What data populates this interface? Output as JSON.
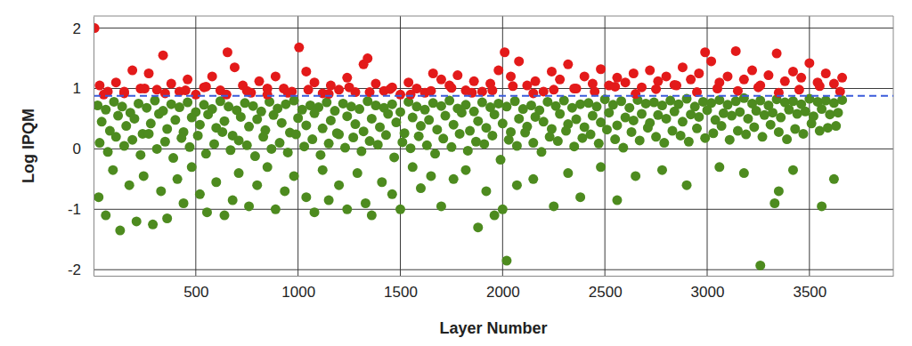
{
  "chart_data": {
    "type": "scatter",
    "x_label": "Layer Number",
    "y_label": "Log IPQM",
    "xlim": [
      0,
      3910
    ],
    "ylim": [
      -2.1,
      2.2
    ],
    "xticks": [
      500,
      1000,
      1500,
      2000,
      2500,
      3000,
      3500
    ],
    "yticks": [
      -2,
      -1,
      0,
      1,
      2
    ],
    "grid": true,
    "marker": "circle",
    "reference_line": {
      "value": 0.88,
      "color": "#3b5bdb",
      "line_style": "dashed"
    },
    "series": [
      {
        "color": "#4d8b1f",
        "x": [
          20,
          60,
          100,
          140,
          180,
          220,
          260,
          300,
          340,
          380,
          420,
          460,
          500,
          540,
          580,
          620,
          660,
          700,
          740,
          780,
          820,
          860,
          900,
          940,
          980,
          1020,
          1060,
          1100,
          1140,
          1180,
          1220,
          1260,
          1300,
          1340,
          1380,
          1420,
          1460,
          1500,
          1540,
          1580,
          1620,
          1660,
          1700,
          1740,
          1780,
          1820,
          1860,
          1900,
          1940,
          1980,
          2020,
          2060,
          2100,
          2140,
          2180,
          2220,
          2260,
          2300,
          2340,
          2380,
          2420,
          2460,
          2500,
          2540,
          2580,
          2620,
          2660,
          2700,
          2740,
          2780,
          2820,
          2860,
          2900,
          2940,
          2980,
          3020,
          3060,
          3100,
          3140,
          3180,
          3220,
          3260,
          3300,
          3340,
          3380,
          3420,
          3460,
          3500,
          3540,
          3580,
          3620,
          3660
        ],
        "values": [
          0.72,
          0.65,
          0.78,
          0.7,
          0.6,
          0.75,
          0.68,
          0.8,
          0.63,
          0.74,
          0.69,
          0.77,
          0.61,
          0.73,
          0.66,
          0.79,
          0.7,
          0.64,
          0.76,
          0.71,
          0.62,
          0.78,
          0.67,
          0.74,
          0.8,
          0.65,
          0.72,
          0.69,
          0.77,
          0.63,
          0.75,
          0.7,
          0.66,
          0.79,
          0.72,
          0.68,
          0.74,
          0.61,
          0.78,
          0.7,
          0.65,
          0.76,
          0.71,
          0.8,
          0.67,
          0.73,
          0.62,
          0.77,
          0.69,
          0.75,
          0.7,
          0.79,
          0.66,
          0.72,
          0.64,
          0.78,
          0.71,
          0.8,
          0.68,
          0.74,
          0.76,
          0.7,
          0.82,
          0.73,
          0.79,
          0.68,
          0.81,
          0.75,
          0.77,
          0.72,
          0.8,
          0.74,
          0.83,
          0.7,
          0.78,
          0.76,
          0.81,
          0.73,
          0.79,
          0.84,
          0.75,
          0.8,
          0.72,
          0.82,
          0.77,
          0.79,
          0.74,
          0.83,
          0.78,
          0.8,
          0.76,
          0.81
        ]
      },
      {
        "color": "#4d8b1f",
        "x": [
          40,
          80,
          120,
          160,
          200,
          240,
          280,
          320,
          360,
          400,
          440,
          480,
          520,
          560,
          600,
          640,
          680,
          720,
          760,
          800,
          840,
          880,
          920,
          960,
          1000,
          1040,
          1080,
          1120,
          1160,
          1200,
          1240,
          1280,
          1320,
          1360,
          1400,
          1440,
          1480,
          1520,
          1560,
          1600,
          1640,
          1680,
          1720,
          1760,
          1800,
          1840,
          1880,
          1920,
          1960,
          2000,
          2040,
          2080,
          2120,
          2160,
          2200,
          2240,
          2280,
          2320,
          2360,
          2400,
          2440,
          2480,
          2520,
          2560,
          2600,
          2640,
          2680,
          2720,
          2760,
          2800,
          2840,
          2880,
          2920,
          2960,
          3000,
          3040,
          3080,
          3120,
          3160,
          3200,
          3240,
          3280,
          3320,
          3360,
          3400,
          3440,
          3480,
          3520,
          3560,
          3600,
          3640
        ],
        "values": [
          0.45,
          0.3,
          0.55,
          0.38,
          0.5,
          0.25,
          0.42,
          0.58,
          0.33,
          0.48,
          0.28,
          0.52,
          0.4,
          0.57,
          0.35,
          0.46,
          0.22,
          0.53,
          0.37,
          0.49,
          0.31,
          0.56,
          0.43,
          0.27,
          0.51,
          0.39,
          0.59,
          0.34,
          0.47,
          0.24,
          0.54,
          0.41,
          0.29,
          0.5,
          0.36,
          0.58,
          0.44,
          0.26,
          0.52,
          0.38,
          0.48,
          0.32,
          0.55,
          0.4,
          0.6,
          0.3,
          0.46,
          0.35,
          0.57,
          0.42,
          0.28,
          0.5,
          0.37,
          0.53,
          0.45,
          0.33,
          0.58,
          0.41,
          0.49,
          0.36,
          0.55,
          0.44,
          0.6,
          0.39,
          0.52,
          0.47,
          0.58,
          0.43,
          0.56,
          0.5,
          0.62,
          0.45,
          0.57,
          0.53,
          0.64,
          0.48,
          0.59,
          0.55,
          0.61,
          0.5,
          0.63,
          0.56,
          0.6,
          0.52,
          0.65,
          0.58,
          0.62,
          0.54,
          0.66,
          0.57,
          0.6
        ]
      },
      {
        "color": "#4d8b1f",
        "x": [
          30,
          70,
          110,
          150,
          190,
          230,
          270,
          310,
          350,
          390,
          430,
          470,
          510,
          550,
          590,
          630,
          670,
          710,
          750,
          790,
          830,
          870,
          910,
          950,
          990,
          1030,
          1070,
          1110,
          1150,
          1190,
          1230,
          1270,
          1310,
          1350,
          1390,
          1430,
          1470,
          1510,
          1550,
          1590,
          1630,
          1670,
          1710,
          1750,
          1790,
          1830,
          1870,
          1910,
          1950,
          1990,
          2030,
          2070,
          2110,
          2150,
          2190,
          2230,
          2270,
          2310,
          2350,
          2390,
          2430,
          2470,
          2510,
          2550,
          2590,
          2630,
          2670,
          2710,
          2750,
          2790,
          2830,
          2870,
          2910,
          2950,
          2990,
          3030,
          3070,
          3110,
          3150,
          3190,
          3230,
          3270,
          3310,
          3350,
          3390,
          3430,
          3470,
          3510,
          3550,
          3590,
          3630
        ],
        "values": [
          0.1,
          -0.05,
          0.2,
          0.05,
          0.15,
          -0.1,
          0.25,
          0.0,
          0.12,
          -0.15,
          0.18,
          0.03,
          0.22,
          -0.08,
          0.08,
          0.28,
          -0.02,
          0.14,
          0.06,
          -0.12,
          0.2,
          0.0,
          0.1,
          -0.06,
          0.24,
          0.04,
          0.16,
          -0.1,
          0.09,
          0.26,
          0.02,
          0.19,
          -0.04,
          0.13,
          0.07,
          0.23,
          -0.14,
          0.11,
          0.01,
          0.21,
          0.06,
          -0.08,
          0.17,
          0.03,
          0.25,
          -0.03,
          0.12,
          0.08,
          0.22,
          -0.18,
          0.15,
          0.05,
          0.27,
          0.1,
          -0.05,
          0.2,
          0.13,
          0.3,
          0.04,
          0.18,
          0.24,
          0.09,
          0.32,
          0.16,
          0.02,
          0.28,
          0.14,
          0.35,
          0.2,
          0.1,
          0.3,
          0.22,
          0.12,
          0.34,
          0.18,
          0.26,
          0.38,
          0.15,
          0.3,
          0.24,
          0.36,
          0.2,
          0.4,
          0.28,
          0.16,
          0.33,
          0.25,
          0.42,
          0.3,
          0.35,
          0.38
        ]
      },
      {
        "color": "#4d8b1f",
        "x": [
          25,
          60,
          95,
          130,
          175,
          210,
          245,
          290,
          330,
          360,
          410,
          440,
          480,
          520,
          555,
          600,
          640,
          680,
          710,
          760,
          800,
          850,
          890,
          935,
          980,
          1040,
          1080,
          1120,
          1150,
          1200,
          1240,
          1290,
          1330,
          1360,
          1410,
          1460,
          1500,
          1560,
          1600,
          1650,
          1700,
          1760,
          1820,
          1880,
          1920,
          1960,
          2000,
          2020,
          2070,
          2150,
          2250,
          2320,
          2380,
          2480,
          2560,
          2650,
          2780,
          2900,
          3060,
          3180,
          3260,
          3330,
          3350,
          3420,
          3560,
          3620
        ],
        "values": [
          -0.8,
          -1.1,
          -0.35,
          -1.35,
          -0.6,
          -1.2,
          -0.45,
          -1.25,
          -0.7,
          -1.15,
          -0.5,
          -0.9,
          -0.3,
          -0.75,
          -1.05,
          -0.55,
          -1.1,
          -0.85,
          -0.4,
          -0.95,
          -0.6,
          -0.3,
          -1.0,
          -0.7,
          -0.45,
          -0.8,
          -1.05,
          -0.35,
          -0.85,
          -0.6,
          -1.0,
          -0.4,
          -0.9,
          -1.1,
          -0.55,
          -0.75,
          -1.0,
          -0.3,
          -0.65,
          -0.45,
          -0.95,
          -0.5,
          -0.35,
          -1.3,
          -0.7,
          -1.1,
          -1.0,
          -1.85,
          -0.6,
          -0.5,
          -0.95,
          -0.4,
          -0.8,
          -0.3,
          -0.85,
          -0.45,
          -0.35,
          -0.6,
          -0.3,
          -0.4,
          -1.93,
          -0.9,
          -0.7,
          -0.35,
          -0.95,
          -0.5
        ]
      },
      {
        "color": "#e31a1a",
        "x": [
          5,
          30,
          70,
          110,
          150,
          190,
          230,
          270,
          310,
          340,
          380,
          420,
          460,
          500,
          540,
          580,
          620,
          655,
          690,
          730,
          770,
          810,
          850,
          890,
          930,
          970,
          1005,
          1040,
          1080,
          1120,
          1160,
          1200,
          1240,
          1280,
          1320,
          1340,
          1380,
          1420,
          1460,
          1500,
          1540,
          1580,
          1620,
          1660,
          1700,
          1740,
          1780,
          1820,
          1860,
          1900,
          1940,
          1980,
          2010,
          2040,
          2080,
          2120,
          2160,
          2200,
          2240,
          2280,
          2320,
          2360,
          2400,
          2440,
          2480,
          2520,
          2560,
          2600,
          2640,
          2680,
          2720,
          2760,
          2800,
          2840,
          2880,
          2920,
          2960,
          2990,
          3020,
          3060,
          3100,
          3140,
          3180,
          3220,
          3260,
          3300,
          3340,
          3380,
          3420,
          3460,
          3500,
          3540,
          3580,
          3620,
          3660
        ],
        "values": [
          2.0,
          1.05,
          0.95,
          1.1,
          0.92,
          1.3,
          1.0,
          1.25,
          0.98,
          1.55,
          1.08,
          0.95,
          1.15,
          0.9,
          1.02,
          1.2,
          0.97,
          1.6,
          1.35,
          1.05,
          0.93,
          1.12,
          0.9,
          1.2,
          1.0,
          0.95,
          1.68,
          1.28,
          1.1,
          0.92,
          1.05,
          0.98,
          1.18,
          0.94,
          1.4,
          1.5,
          1.08,
          0.96,
          1.02,
          0.9,
          1.1,
          1.0,
          0.93,
          1.25,
          1.15,
          1.05,
          1.22,
          0.97,
          1.12,
          0.95,
          1.08,
          1.3,
          1.6,
          1.2,
          1.45,
          1.05,
          1.12,
          0.95,
          1.28,
          1.15,
          1.4,
          1.0,
          1.2,
          1.08,
          1.32,
          1.05,
          1.18,
          1.1,
          1.25,
          1.02,
          1.3,
          1.12,
          1.2,
          1.06,
          1.35,
          1.15,
          1.25,
          1.6,
          1.45,
          1.1,
          1.2,
          1.62,
          1.15,
          1.3,
          1.05,
          1.22,
          1.58,
          1.12,
          1.28,
          1.18,
          1.42,
          1.1,
          1.25,
          1.08,
          1.18
        ]
      },
      {
        "color": "#e31a1a",
        "x": [
          50,
          150,
          250,
          350,
          450,
          550,
          650,
          750,
          850,
          950,
          1050,
          1150,
          1250,
          1350,
          1450,
          1550,
          1650,
          1750,
          1850,
          1950,
          2050,
          2150,
          2250,
          2350,
          2450,
          2550,
          2650,
          2750,
          2850,
          2950,
          3050,
          3150,
          3250,
          3350,
          3450,
          3550,
          3650
        ],
        "values": [
          0.9,
          0.95,
          1.0,
          0.92,
          0.97,
          1.03,
          0.9,
          0.96,
          1.0,
          0.93,
          0.98,
          0.91,
          1.02,
          0.94,
          0.99,
          0.9,
          0.96,
          1.01,
          0.93,
          0.97,
          1.04,
          0.92,
          0.98,
          1.0,
          0.95,
          1.03,
          0.91,
          0.99,
          1.05,
          0.94,
          1.0,
          0.96,
          1.02,
          0.93,
          0.98,
          1.04,
          0.95
        ]
      }
    ]
  }
}
